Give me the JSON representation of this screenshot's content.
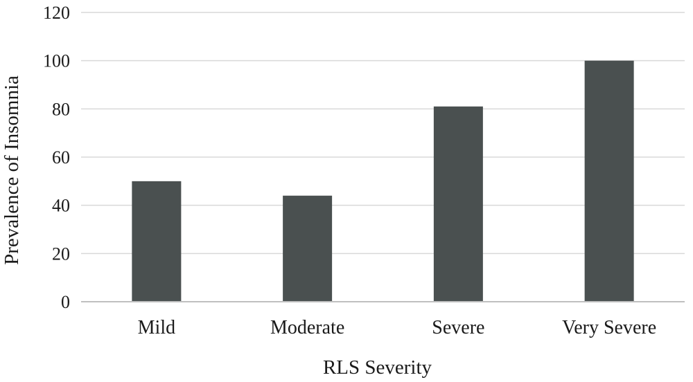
{
  "chart_data": {
    "type": "bar",
    "categories": [
      "Mild",
      "Moderate",
      "Severe",
      "Very Severe"
    ],
    "values": [
      50,
      44,
      81,
      100
    ],
    "xlabel": "RLS Severity",
    "ylabel": "Prevalence of Insomnia",
    "ylim": [
      0,
      120
    ],
    "yticks": [
      0,
      20,
      40,
      60,
      80,
      100,
      120
    ],
    "grid": true,
    "legend": "none",
    "bar_color": "#4a5050"
  }
}
